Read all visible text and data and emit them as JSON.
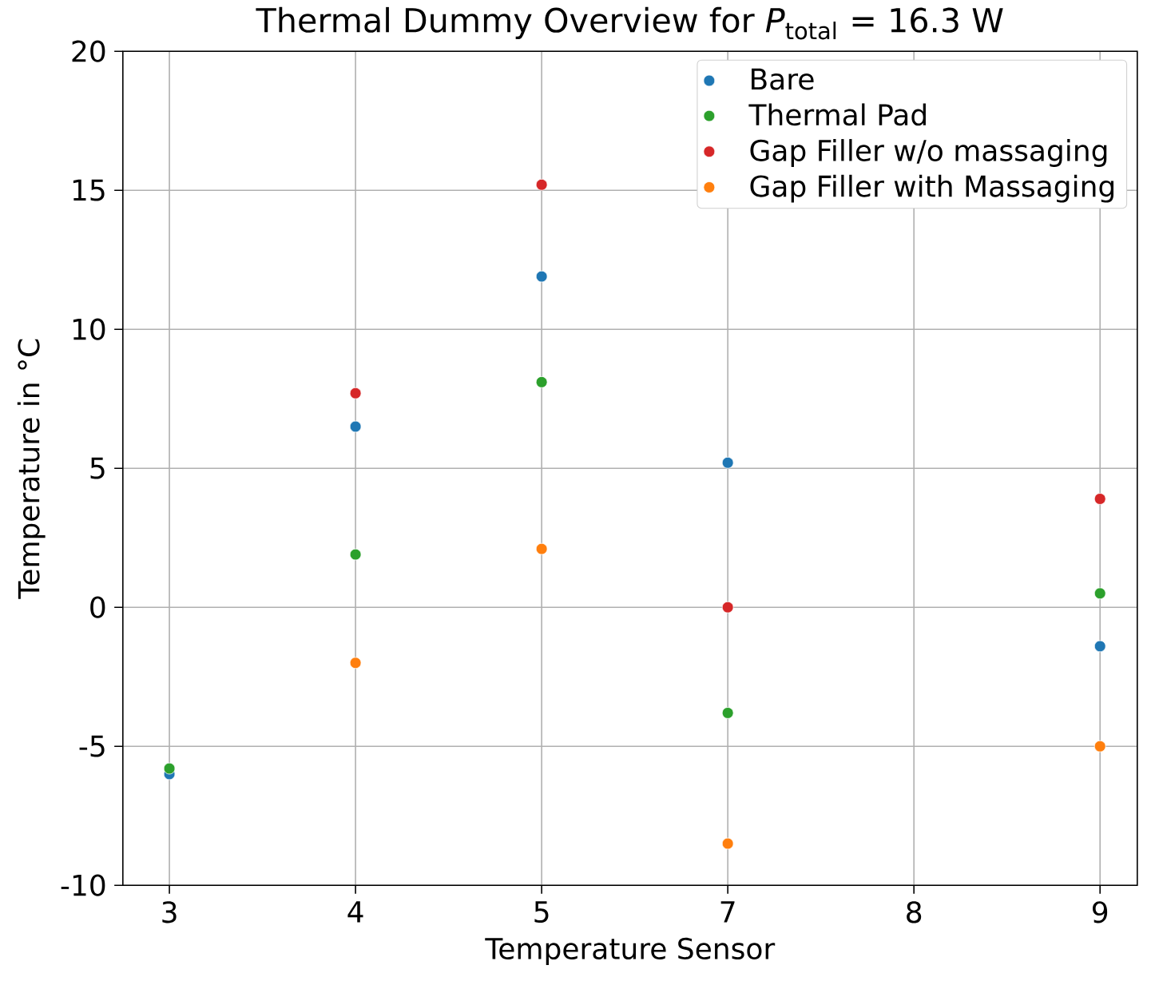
{
  "chart_data": {
    "type": "scatter",
    "title": "Thermal Dummy Overview for *P*$_{total}$ = 16.3 W",
    "xlabel": "Temperature Sensor",
    "ylabel": "Temperature in °C",
    "categories": [
      "3",
      "4",
      "5",
      "7",
      "8",
      "9"
    ],
    "ylim": [
      -10,
      20
    ],
    "yticks": [
      -10,
      -5,
      0,
      5,
      10,
      15,
      20
    ],
    "grid": true,
    "legend": "top right",
    "marker": "circle",
    "series": [
      {
        "name": "Bare",
        "color": "#1f77b4",
        "values": [
          -6.0,
          6.5,
          11.9,
          5.2,
          null,
          -1.4
        ]
      },
      {
        "name": "Thermal Pad",
        "color": "#2ca02c",
        "values": [
          -5.8,
          1.9,
          8.1,
          -3.8,
          null,
          0.5
        ]
      },
      {
        "name": "Gap Filler w/o massaging",
        "color": "#d62728",
        "values": [
          null,
          7.7,
          15.2,
          0.0,
          null,
          3.9
        ]
      },
      {
        "name": "Gap Filler with Massaging",
        "color": "#ff7f0e",
        "values": [
          null,
          -2.0,
          2.1,
          -8.5,
          null,
          -5.0
        ]
      }
    ]
  }
}
